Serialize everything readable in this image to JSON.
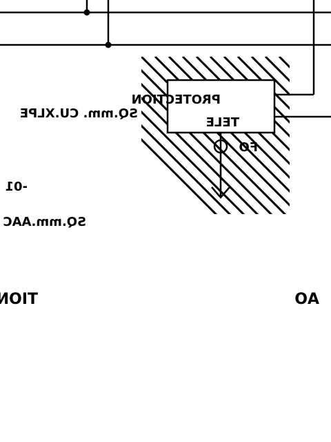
{
  "labels": {
    "protection": "PROTECTION",
    "tele": "TELE",
    "fo": "FO",
    "cable_xlpe": "SQ.mm. CU.XLPE",
    "ref_01": "-01",
    "cable_aac": "SQ.mm.AAC",
    "section": "TION",
    "ao": "AO"
  },
  "colors": {
    "ink": "#000000",
    "paper": "#ffffff"
  },
  "orientation": "mirrored"
}
